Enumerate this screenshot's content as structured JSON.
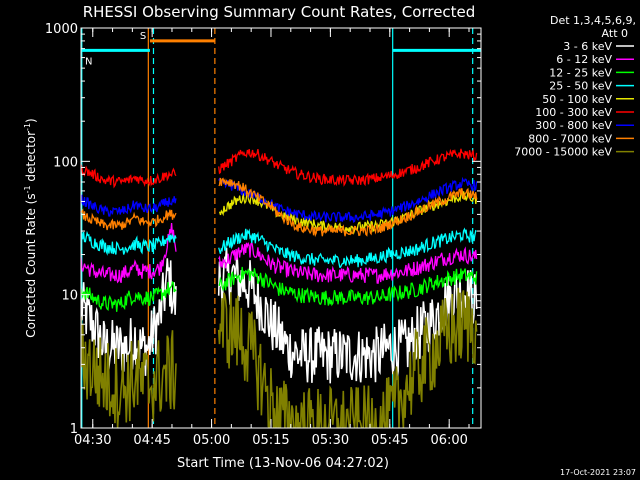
{
  "chart_data": {
    "type": "line",
    "title": "RHESSI Observing Summary Count Rates, Corrected",
    "xlabel": "Start Time (13-Nov-06 04:27:02)",
    "ylabel": "Corrected Count Rate (s",
    "ylabel_sup1": "-1",
    "ylabel_mid": " detector",
    "ylabel_sup2": "-1",
    "ylabel_end": ")",
    "y_scale": "log",
    "ylim": [
      1,
      1000
    ],
    "y_ticks": [
      {
        "value": 1,
        "label": "1"
      },
      {
        "value": 10,
        "label": "10"
      },
      {
        "value": 100,
        "label": "100"
      },
      {
        "value": 1000,
        "label": "1000"
      }
    ],
    "x_unit": "minutes after 04:27:02",
    "xlim": [
      0,
      101
    ],
    "x_ticks": [
      {
        "value": 2.97,
        "label": "04:30"
      },
      {
        "value": 17.97,
        "label": "04:45"
      },
      {
        "value": 32.97,
        "label": "05:00"
      },
      {
        "value": 47.97,
        "label": "05:15"
      },
      {
        "value": 62.97,
        "label": "05:30"
      },
      {
        "value": 77.97,
        "label": "05:45"
      },
      {
        "value": 92.97,
        "label": "06:00"
      }
    ],
    "legend_title": "Det 1,3,4,5,6,9,",
    "legend_subtitle": "Att 0",
    "legend_placement": "right",
    "gaps": [
      [
        24.1,
        34.7
      ]
    ],
    "series": [
      {
        "name": "3 - 6 keV",
        "color": "#ffffff",
        "noise": 0.22,
        "points": [
          [
            0,
            8
          ],
          [
            3,
            6
          ],
          [
            6,
            4
          ],
          [
            10,
            4
          ],
          [
            12,
            4
          ],
          [
            14,
            5
          ],
          [
            15,
            4
          ],
          [
            16,
            4
          ],
          [
            17,
            4
          ],
          [
            18,
            5
          ],
          [
            20,
            7
          ],
          [
            22,
            14
          ],
          [
            24,
            8
          ],
          [
            35,
            13
          ],
          [
            38,
            14
          ],
          [
            40,
            13
          ],
          [
            42,
            12
          ],
          [
            44,
            10
          ],
          [
            46,
            8
          ],
          [
            48,
            6
          ],
          [
            50,
            5
          ],
          [
            52,
            4
          ],
          [
            55,
            3.5
          ],
          [
            60,
            3.5
          ],
          [
            65,
            3.5
          ],
          [
            70,
            3.5
          ],
          [
            75,
            3.5
          ],
          [
            78,
            4
          ],
          [
            82,
            4
          ],
          [
            85,
            5
          ],
          [
            88,
            6
          ],
          [
            91,
            8
          ],
          [
            94,
            10
          ],
          [
            96,
            11
          ],
          [
            98,
            10
          ],
          [
            100,
            9
          ]
        ]
      },
      {
        "name": "6 - 12 keV",
        "color": "#ff00ff",
        "noise": 0.06,
        "points": [
          [
            0,
            17
          ],
          [
            3,
            15
          ],
          [
            6,
            14
          ],
          [
            10,
            14
          ],
          [
            12,
            15
          ],
          [
            14,
            16
          ],
          [
            15,
            15
          ],
          [
            16,
            15
          ],
          [
            18,
            15
          ],
          [
            20,
            16
          ],
          [
            22,
            25
          ],
          [
            23,
            32
          ],
          [
            24,
            22
          ],
          [
            35,
            17
          ],
          [
            38,
            19
          ],
          [
            40,
            21
          ],
          [
            42,
            22
          ],
          [
            44,
            21
          ],
          [
            46,
            19
          ],
          [
            48,
            17
          ],
          [
            50,
            16
          ],
          [
            55,
            14.5
          ],
          [
            60,
            14
          ],
          [
            65,
            14
          ],
          [
            70,
            14
          ],
          [
            75,
            14
          ],
          [
            78,
            14.5
          ],
          [
            82,
            15
          ],
          [
            85,
            16
          ],
          [
            88,
            17
          ],
          [
            92,
            19
          ],
          [
            96,
            20
          ],
          [
            100,
            19
          ]
        ]
      },
      {
        "name": "12 - 25 keV",
        "color": "#00ff00",
        "noise": 0.06,
        "points": [
          [
            0,
            11
          ],
          [
            3,
            9.5
          ],
          [
            6,
            8.5
          ],
          [
            10,
            8.5
          ],
          [
            12,
            9.5
          ],
          [
            14,
            10
          ],
          [
            15,
            9.5
          ],
          [
            16,
            9.5
          ],
          [
            18,
            9.5
          ],
          [
            20,
            10
          ],
          [
            22,
            11
          ],
          [
            24,
            11
          ],
          [
            35,
            11.5
          ],
          [
            38,
            13
          ],
          [
            40,
            14
          ],
          [
            42,
            14.5
          ],
          [
            44,
            14
          ],
          [
            46,
            13
          ],
          [
            48,
            12
          ],
          [
            50,
            11
          ],
          [
            55,
            10
          ],
          [
            60,
            9.5
          ],
          [
            65,
            9.5
          ],
          [
            70,
            9.5
          ],
          [
            75,
            9.5
          ],
          [
            78,
            10
          ],
          [
            82,
            10.5
          ],
          [
            85,
            11
          ],
          [
            88,
            12
          ],
          [
            92,
            13
          ],
          [
            96,
            14
          ],
          [
            100,
            13.5
          ]
        ]
      },
      {
        "name": "25 - 50 keV",
        "color": "#00ffff",
        "noise": 0.05,
        "points": [
          [
            0,
            28
          ],
          [
            3,
            25
          ],
          [
            6,
            23
          ],
          [
            10,
            22
          ],
          [
            12,
            23
          ],
          [
            14,
            24
          ],
          [
            15,
            23
          ],
          [
            16,
            23
          ],
          [
            18,
            23
          ],
          [
            20,
            24
          ],
          [
            22,
            27
          ],
          [
            24,
            27
          ],
          [
            35,
            22
          ],
          [
            38,
            25
          ],
          [
            40,
            27
          ],
          [
            42,
            28
          ],
          [
            44,
            27
          ],
          [
            46,
            25
          ],
          [
            48,
            23
          ],
          [
            50,
            21
          ],
          [
            55,
            19
          ],
          [
            60,
            18
          ],
          [
            65,
            18
          ],
          [
            70,
            18
          ],
          [
            75,
            19
          ],
          [
            78,
            20
          ],
          [
            82,
            21
          ],
          [
            85,
            22
          ],
          [
            88,
            24
          ],
          [
            92,
            26
          ],
          [
            96,
            28
          ],
          [
            100,
            27
          ]
        ]
      },
      {
        "name": "50 - 100 keV",
        "color": "#e6e600",
        "noise": 0.04,
        "points": [
          [
            35,
            42
          ],
          [
            38,
            48
          ],
          [
            40,
            52
          ],
          [
            42,
            54
          ],
          [
            44,
            52
          ],
          [
            46,
            48
          ],
          [
            48,
            45
          ],
          [
            50,
            40
          ],
          [
            55,
            36
          ],
          [
            60,
            33
          ],
          [
            65,
            32
          ],
          [
            70,
            32
          ],
          [
            75,
            33
          ],
          [
            78,
            35
          ],
          [
            82,
            38
          ],
          [
            85,
            42
          ],
          [
            88,
            46
          ],
          [
            92,
            50
          ],
          [
            96,
            55
          ],
          [
            100,
            52
          ]
        ]
      },
      {
        "name": "100 - 300 keV",
        "color": "#ff0000",
        "noise": 0.04,
        "points": [
          [
            0,
            88
          ],
          [
            3,
            80
          ],
          [
            6,
            72
          ],
          [
            10,
            70
          ],
          [
            12,
            72
          ],
          [
            14,
            76
          ],
          [
            15,
            73
          ],
          [
            16,
            72
          ],
          [
            18,
            72
          ],
          [
            20,
            75
          ],
          [
            22,
            80
          ],
          [
            24,
            80
          ],
          [
            35,
            88
          ],
          [
            38,
            100
          ],
          [
            40,
            110
          ],
          [
            42,
            118
          ],
          [
            44,
            115
          ],
          [
            46,
            108
          ],
          [
            48,
            100
          ],
          [
            50,
            92
          ],
          [
            55,
            80
          ],
          [
            60,
            74
          ],
          [
            65,
            72
          ],
          [
            70,
            72
          ],
          [
            75,
            75
          ],
          [
            78,
            78
          ],
          [
            82,
            84
          ],
          [
            85,
            90
          ],
          [
            88,
            98
          ],
          [
            92,
            108
          ],
          [
            96,
            115
          ],
          [
            100,
            108
          ]
        ]
      },
      {
        "name": "300 - 800 keV",
        "color": "#0000ff",
        "noise": 0.04,
        "points": [
          [
            0,
            52
          ],
          [
            3,
            46
          ],
          [
            6,
            42
          ],
          [
            10,
            42
          ],
          [
            12,
            44
          ],
          [
            14,
            48
          ],
          [
            15,
            45
          ],
          [
            16,
            44
          ],
          [
            18,
            44
          ],
          [
            20,
            46
          ],
          [
            22,
            50
          ],
          [
            24,
            50
          ],
          [
            35,
            68
          ],
          [
            38,
            66
          ],
          [
            40,
            62
          ],
          [
            42,
            58
          ],
          [
            44,
            55
          ],
          [
            46,
            52
          ],
          [
            48,
            48
          ],
          [
            50,
            44
          ],
          [
            55,
            40
          ],
          [
            60,
            38
          ],
          [
            65,
            38
          ],
          [
            70,
            38
          ],
          [
            75,
            40
          ],
          [
            78,
            42
          ],
          [
            82,
            46
          ],
          [
            85,
            50
          ],
          [
            88,
            55
          ],
          [
            92,
            62
          ],
          [
            96,
            68
          ],
          [
            100,
            66
          ]
        ]
      },
      {
        "name": "800 - 7000 keV",
        "color": "#ff8000",
        "noise": 0.04,
        "points": [
          [
            0,
            40
          ],
          [
            3,
            36
          ],
          [
            6,
            33
          ],
          [
            10,
            33
          ],
          [
            12,
            35
          ],
          [
            14,
            38
          ],
          [
            15,
            36
          ],
          [
            16,
            35
          ],
          [
            18,
            35
          ],
          [
            20,
            37
          ],
          [
            22,
            40
          ],
          [
            24,
            40
          ],
          [
            35,
            72
          ],
          [
            38,
            70
          ],
          [
            40,
            66
          ],
          [
            42,
            60
          ],
          [
            44,
            55
          ],
          [
            46,
            50
          ],
          [
            48,
            46
          ],
          [
            50,
            40
          ],
          [
            55,
            32
          ],
          [
            60,
            30
          ],
          [
            65,
            30
          ],
          [
            70,
            30
          ],
          [
            75,
            31
          ],
          [
            78,
            34
          ],
          [
            82,
            38
          ],
          [
            85,
            42
          ],
          [
            88,
            46
          ],
          [
            92,
            52
          ],
          [
            96,
            58
          ],
          [
            100,
            55
          ]
        ]
      },
      {
        "name": "7000 - 15000 keV",
        "color": "#808000",
        "noise": 0.32,
        "points": [
          [
            0,
            3.5
          ],
          [
            3,
            2.8
          ],
          [
            6,
            2.3
          ],
          [
            10,
            2
          ],
          [
            12,
            2.2
          ],
          [
            14,
            2.4
          ],
          [
            15,
            2.2
          ],
          [
            16,
            2.1
          ],
          [
            18,
            2.2
          ],
          [
            20,
            2.4
          ],
          [
            22,
            2.6
          ],
          [
            24,
            2.6
          ],
          [
            35,
            6
          ],
          [
            38,
            5.5
          ],
          [
            40,
            5
          ],
          [
            42,
            4.2
          ],
          [
            44,
            3.2
          ],
          [
            46,
            2.2
          ],
          [
            48,
            1.5
          ],
          [
            50,
            1.2
          ],
          [
            55,
            1
          ],
          [
            60,
            1
          ],
          [
            65,
            1
          ],
          [
            70,
            1
          ],
          [
            75,
            1
          ],
          [
            78,
            1.2
          ],
          [
            80,
            1.5
          ],
          [
            82,
            2
          ],
          [
            85,
            2.8
          ],
          [
            88,
            3.5
          ],
          [
            91,
            4.5
          ],
          [
            94,
            5.5
          ],
          [
            97,
            6
          ],
          [
            100,
            6
          ]
        ]
      }
    ],
    "annotations": {
      "segments": [
        {
          "label": "S",
          "color": "#ff8000",
          "x0": 17.4,
          "x1": 33.8,
          "value": 800
        },
        {
          "label": "N",
          "color": "#00ffff",
          "x0": 0,
          "x1": 17.4,
          "value": 680
        },
        {
          "label": "",
          "color": "#00ffff",
          "x0": 78.7,
          "x1": 101,
          "value": 680
        }
      ],
      "vlines": [
        {
          "x": 0.2,
          "color": "#00ffff",
          "dashed": false
        },
        {
          "x": 17.0,
          "color": "#ff8000",
          "dashed": false
        },
        {
          "x": 18.3,
          "color": "#00ffff",
          "dashed": true
        },
        {
          "x": 33.8,
          "color": "#ff8000",
          "dashed": true
        },
        {
          "x": 78.7,
          "color": "#00ffff",
          "dashed": false
        },
        {
          "x": 98.9,
          "color": "#00ffff",
          "dashed": true
        }
      ]
    }
  },
  "timestamp": "17-Oct-2021 23:07"
}
